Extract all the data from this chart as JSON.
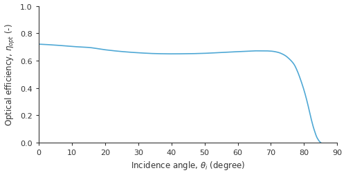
{
  "title": "",
  "xlabel": "Incidence angle, $\\theta_i$ (degree)",
  "ylabel": "Optical efficiency, $\\eta_{opt}$ (-)",
  "xlim": [
    0,
    90
  ],
  "ylim": [
    0.0,
    1.0
  ],
  "xticks": [
    0,
    10,
    20,
    30,
    40,
    50,
    60,
    70,
    80,
    90
  ],
  "yticks": [
    0.0,
    0.2,
    0.4,
    0.6,
    0.8,
    1.0
  ],
  "line_color": "#4fa8d5",
  "line_width": 1.2,
  "background_color": "#ffffff",
  "spine_color": "#333333",
  "tick_color": "#333333",
  "label_color": "#333333",
  "knots_flat_x": [
    0,
    5,
    10,
    15,
    20,
    25,
    30,
    35,
    40,
    45,
    50,
    55,
    60,
    65
  ],
  "knots_flat_y": [
    0.72,
    0.713,
    0.703,
    0.696,
    0.679,
    0.666,
    0.657,
    0.651,
    0.649,
    0.65,
    0.653,
    0.659,
    0.665,
    0.671
  ],
  "knots_drop_x": [
    65,
    68,
    70,
    72,
    74,
    76,
    77,
    78,
    79,
    80,
    81,
    82,
    83,
    84,
    85
  ],
  "knots_drop_y": [
    0.671,
    0.671,
    0.669,
    0.661,
    0.641,
    0.601,
    0.571,
    0.521,
    0.456,
    0.381,
    0.291,
    0.186,
    0.096,
    0.031,
    0.0
  ]
}
